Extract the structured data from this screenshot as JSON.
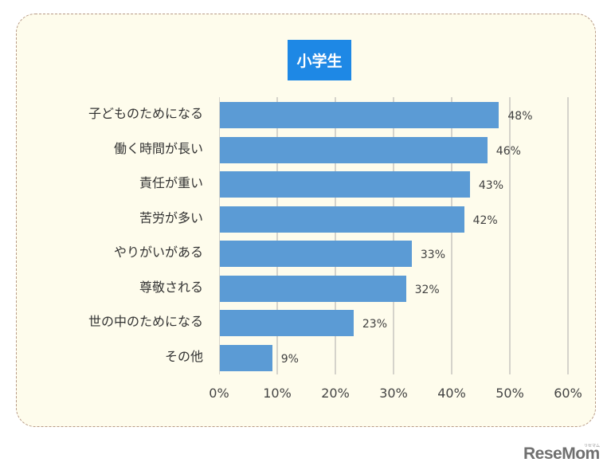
{
  "chart_data": {
    "type": "bar",
    "orientation": "horizontal",
    "title": "小学生",
    "categories": [
      "子どものためになる",
      "働く時間が長い",
      "責任が重い",
      "苦労が多い",
      "やりがいがある",
      "尊敬される",
      "世の中のためになる",
      "その他"
    ],
    "values": [
      48,
      46,
      43,
      42,
      33,
      32,
      23,
      9
    ],
    "value_labels": [
      "48%",
      "46%",
      "43%",
      "42%",
      "33%",
      "32%",
      "23%",
      "9%"
    ],
    "xlabel": "",
    "ylabel": "",
    "xlim": [
      0,
      60
    ],
    "x_ticks": [
      "0%",
      "10%",
      "20%",
      "30%",
      "40%",
      "50%",
      "60%"
    ],
    "grid": true,
    "legend": "none",
    "bar_color": "#5b9bd5"
  },
  "title_badge": {
    "label": "小学生",
    "color": "#1e88e5"
  },
  "watermark": {
    "logo": "ReseMom",
    "ruby": "リセマム"
  }
}
